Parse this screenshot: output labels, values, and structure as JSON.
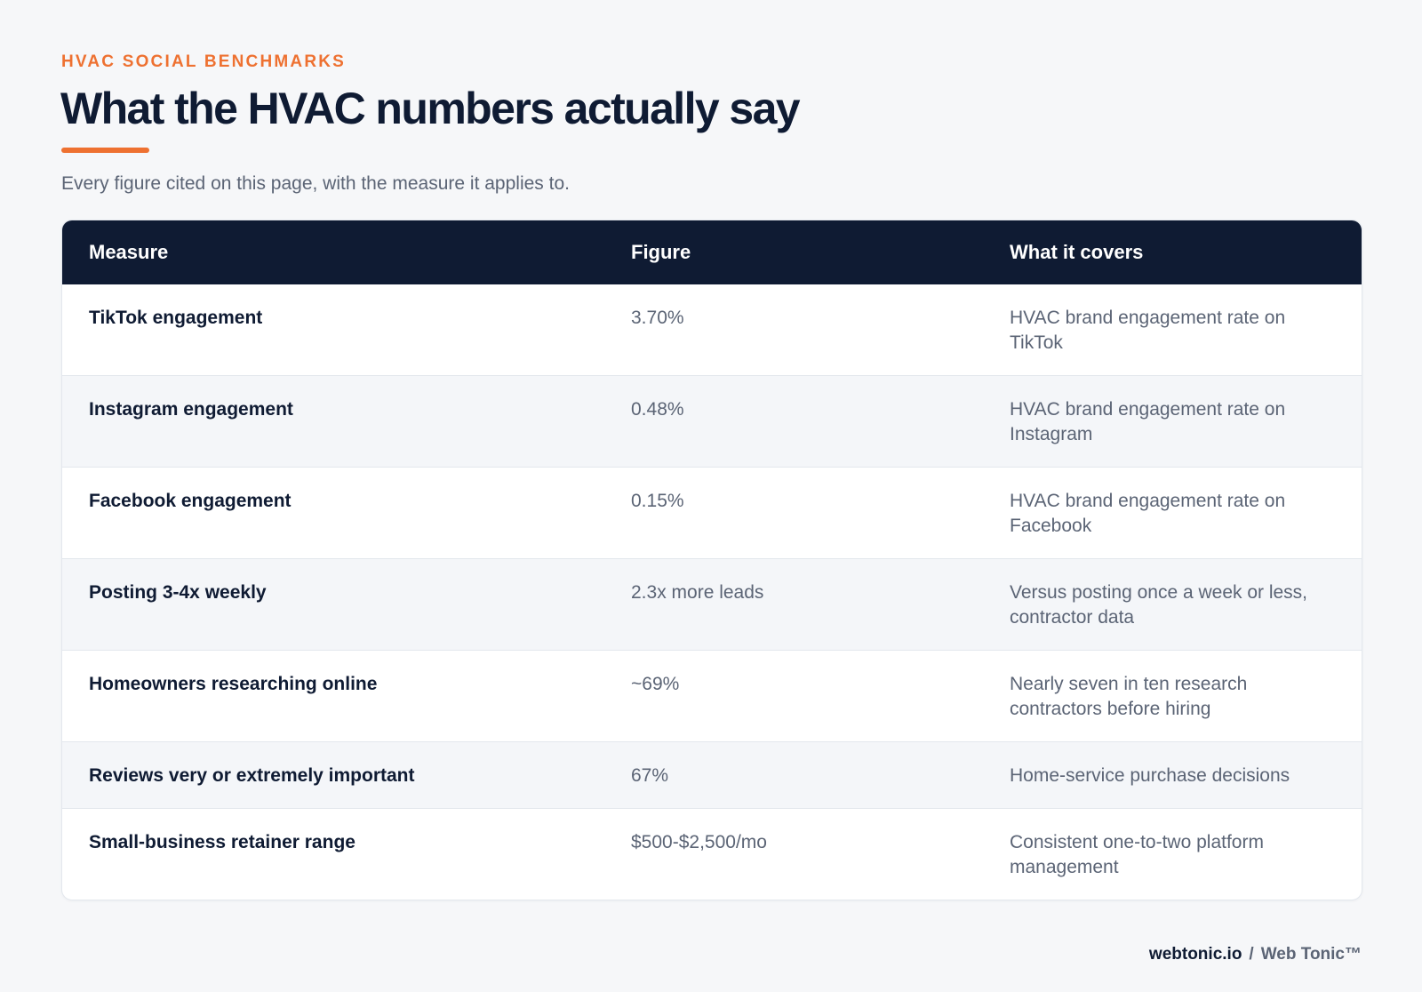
{
  "header": {
    "eyebrow": "HVAC SOCIAL BENCHMARKS",
    "title": "What the HVAC numbers actually say",
    "subtitle": "Every figure cited on this page, with the measure it applies to."
  },
  "table": {
    "columns": [
      "Measure",
      "Figure",
      "What it covers"
    ],
    "rows": [
      {
        "measure": "TikTok engagement",
        "figure": "3.70%",
        "covers": "HVAC brand engagement rate on TikTok"
      },
      {
        "measure": "Instagram engagement",
        "figure": "0.48%",
        "covers": "HVAC brand engagement rate on Instagram"
      },
      {
        "measure": "Facebook engagement",
        "figure": "0.15%",
        "covers": "HVAC brand engagement rate on Facebook"
      },
      {
        "measure": "Posting 3-4x weekly",
        "figure": "2.3x more leads",
        "covers": "Versus posting once a week or less, contractor data"
      },
      {
        "measure": "Homeowners researching online",
        "figure": "~69%",
        "covers": "Nearly seven in ten research contractors before hiring"
      },
      {
        "measure": "Reviews very or extremely important",
        "figure": "67%",
        "covers": "Home-service purchase decisions"
      },
      {
        "measure": "Small-business retainer range",
        "figure": "$500-$2,500/mo",
        "covers": "Consistent one-to-two platform management"
      }
    ]
  },
  "footer": {
    "domain": "webtonic.io",
    "separator": "/",
    "brand": "Web Tonic™"
  },
  "colors": {
    "accent": "#ee7131",
    "navy": "#0f1b33",
    "muted_text": "#5b6475",
    "page_background": "#f6f7f9"
  }
}
